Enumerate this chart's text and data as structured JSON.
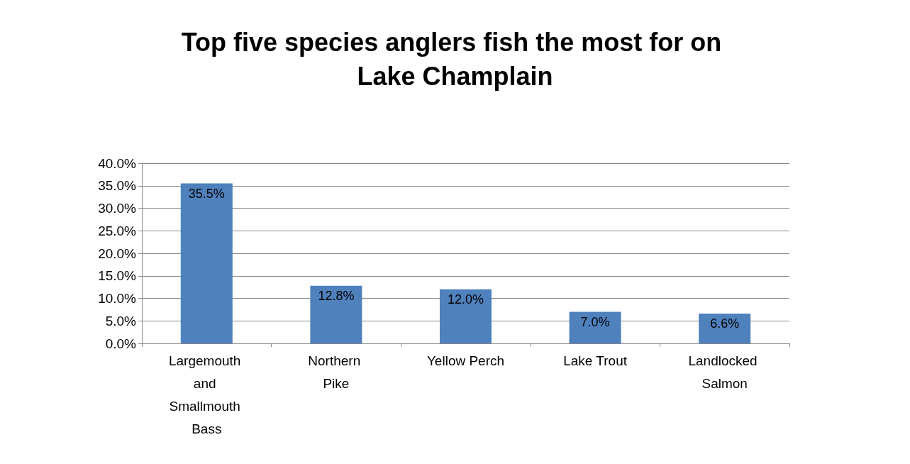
{
  "chart_data": {
    "type": "bar",
    "title": "Top five species anglers fish the most for on Lake Champlain",
    "categories": [
      "Largemouth and Smallmouth Bass",
      "Northern Pike",
      "Yellow Perch",
      "Lake Trout",
      "Landlocked Salmon"
    ],
    "values": [
      35.5,
      12.8,
      12.0,
      7.0,
      6.6
    ],
    "value_labels": [
      "35.5%",
      "12.8%",
      "12.0%",
      "7.0%",
      "6.6%"
    ],
    "color": "#4f81bd",
    "ylim": [
      0,
      40
    ],
    "yticks": [
      {
        "value": 0,
        "label": "0.0%"
      },
      {
        "value": 5,
        "label": "5.0%"
      },
      {
        "value": 10,
        "label": "10.0%"
      },
      {
        "value": 15,
        "label": "15.0%"
      },
      {
        "value": 20,
        "label": "20.0%"
      },
      {
        "value": 25,
        "label": "25.0%"
      },
      {
        "value": 30,
        "label": "30.0%"
      },
      {
        "value": 35,
        "label": "35.0%"
      },
      {
        "value": 40,
        "label": "40.0%"
      }
    ],
    "grid": "y"
  }
}
